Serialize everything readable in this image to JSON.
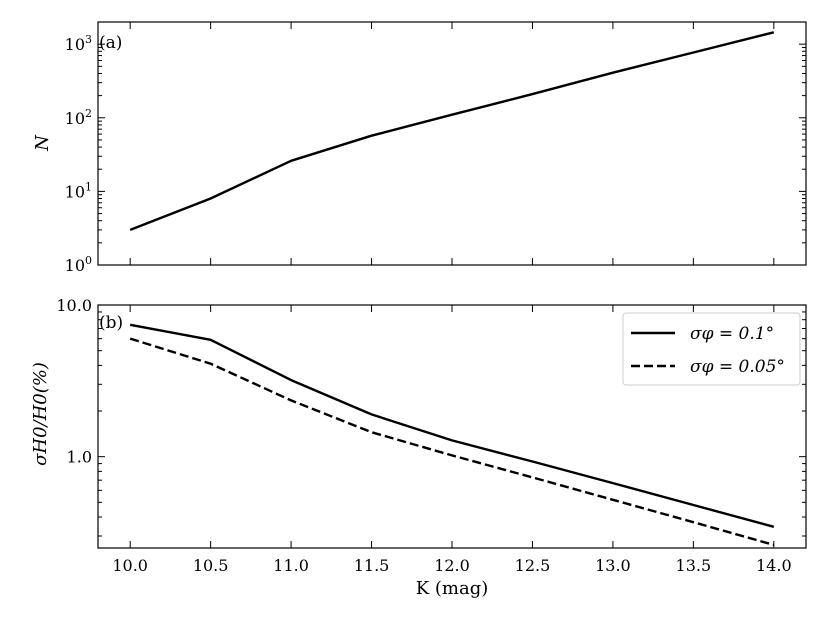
{
  "chart_data": [
    {
      "type": "line",
      "panel_label": "(a)",
      "ylabel": "N",
      "xlabel": "",
      "yscale": "log",
      "ylim": [
        1,
        2000
      ],
      "xlim": [
        9.8,
        14.2
      ],
      "xticks": [
        10.0,
        10.5,
        11.0,
        11.5,
        12.0,
        12.5,
        13.0,
        13.5,
        14.0
      ],
      "xtick_labels_shown": false,
      "yticks": [
        {
          "exp": "0"
        },
        {
          "exp": "1"
        },
        {
          "exp": "2"
        },
        {
          "exp": "3"
        }
      ],
      "ytick_base": "10",
      "grid": false,
      "series": [
        {
          "style": "solid",
          "x": [
            10.0,
            10.5,
            11.0,
            11.5,
            12.0,
            12.5,
            13.0,
            13.5,
            14.0
          ],
          "values": [
            3,
            8,
            26,
            57,
            110,
            210,
            410,
            770,
            1450
          ]
        }
      ]
    },
    {
      "type": "line",
      "panel_label": "(b)",
      "ylabel": "σH0/H0(%)",
      "xlabel": "K (mag)",
      "yscale": "log",
      "ylim": [
        0.25,
        10.0
      ],
      "xlim": [
        9.8,
        14.2
      ],
      "xticks": [
        10.0,
        10.5,
        11.0,
        11.5,
        12.0,
        12.5,
        13.0,
        13.5,
        14.0
      ],
      "xtick_labels": [
        "10.0",
        "10.5",
        "11.0",
        "11.5",
        "12.0",
        "12.5",
        "13.0",
        "13.5",
        "14.0"
      ],
      "yticks": [
        {
          "value": 1.0,
          "label": "1.0"
        },
        {
          "value": 10.0,
          "label": "10.0"
        }
      ],
      "grid": false,
      "legend_position": "top-right",
      "series": [
        {
          "name": "σφ = 0.1°",
          "style": "solid",
          "x": [
            10.0,
            10.5,
            11.0,
            11.5,
            12.0,
            12.5,
            13.0,
            13.5,
            14.0
          ],
          "values": [
            7.4,
            5.9,
            3.2,
            1.9,
            1.28,
            0.93,
            0.67,
            0.48,
            0.345
          ]
        },
        {
          "name": "σφ = 0.05°",
          "style": "dashed",
          "x": [
            10.0,
            10.5,
            11.0,
            11.5,
            12.0,
            12.5,
            13.0,
            13.5,
            14.0
          ],
          "values": [
            6.0,
            4.1,
            2.35,
            1.45,
            1.02,
            0.73,
            0.52,
            0.37,
            0.262
          ]
        }
      ]
    }
  ]
}
